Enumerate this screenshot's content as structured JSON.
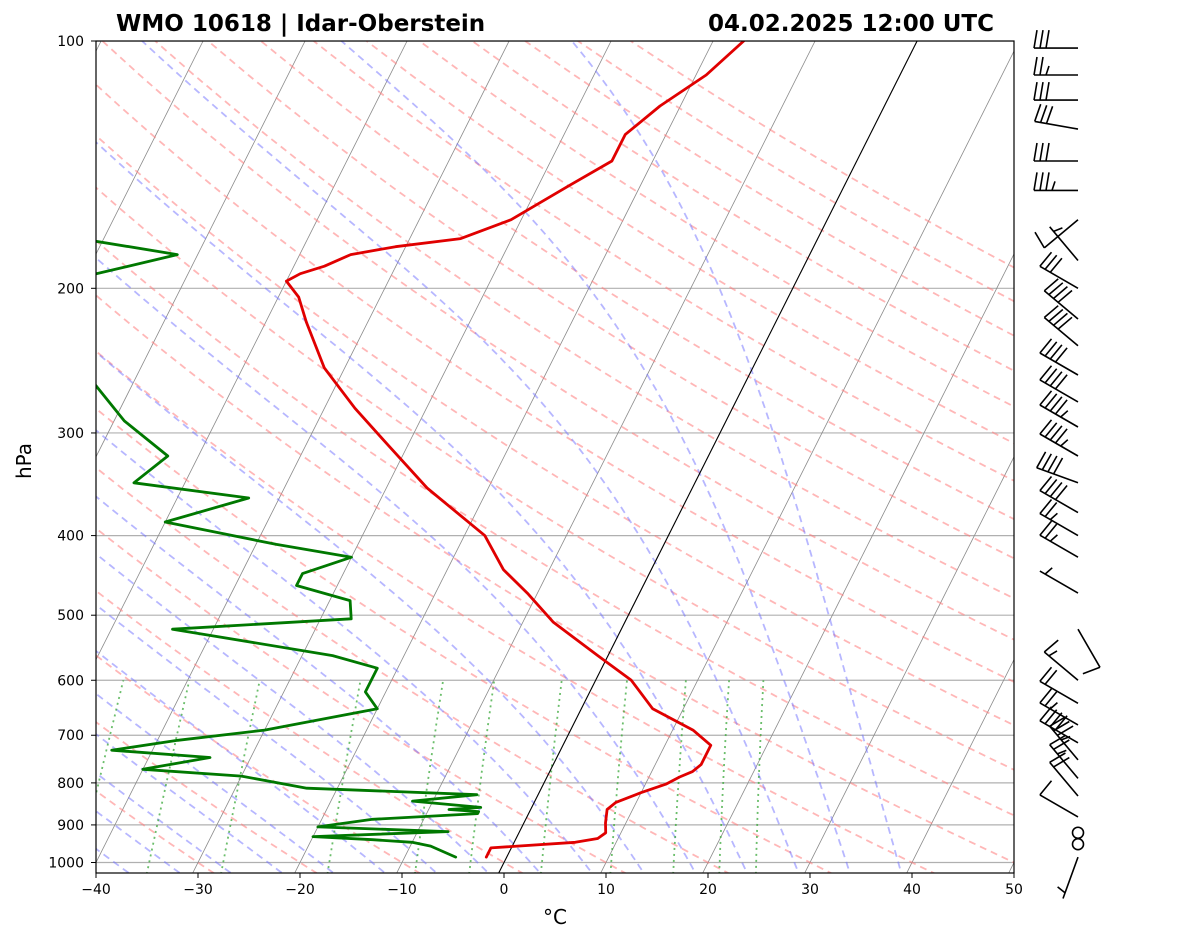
{
  "chart_data": {
    "type": "line",
    "title_left": "WMO 10618 | Idar-Oberstein",
    "title_right": "04.02.2025 12:00 UTC",
    "xlabel": "°C",
    "ylabel": "hPa",
    "xlim": [
      -40,
      50
    ],
    "ylim": [
      1000,
      100
    ],
    "x_ticks": [
      -40,
      -30,
      -20,
      -10,
      0,
      10,
      20,
      30,
      40,
      50
    ],
    "x_tick_labels": [
      "−40",
      "−30",
      "−20",
      "−10",
      "0",
      "10",
      "20",
      "30",
      "40",
      "50"
    ],
    "y_ticks": [
      1000,
      900,
      800,
      700,
      600,
      500,
      400,
      300,
      200,
      100
    ],
    "y_tick_labels": [
      "1000",
      "900",
      "800",
      "700",
      "600",
      "500",
      "400",
      "300",
      "200",
      "100"
    ],
    "skew_deg_per_decade": 40.5,
    "isotherm_step_c": 10,
    "dry_adiabats_theta_c": [
      -30,
      -20,
      -10,
      0,
      10,
      20,
      30,
      40,
      50,
      60,
      70,
      80,
      90,
      100,
      110,
      120,
      130,
      140,
      150,
      160,
      170,
      180,
      190,
      200
    ],
    "moist_adiabats_start_c": [
      -35,
      -30,
      -25,
      -20,
      -15,
      -10,
      -5,
      0,
      5,
      10,
      15,
      20,
      25,
      30,
      35,
      40
    ],
    "mixing_ratios_gkg": [
      0.1,
      0.2,
      0.4,
      1,
      2,
      3,
      5,
      8,
      12,
      16,
      20
    ],
    "zero_isotherm_c": 0,
    "series": [
      {
        "name": "Temperature",
        "color": "#e00000",
        "points": [
          [
            985,
            -2
          ],
          [
            960,
            -2
          ],
          [
            945,
            6
          ],
          [
            935,
            8
          ],
          [
            920,
            8.5
          ],
          [
            895,
            8
          ],
          [
            862,
            7.5
          ],
          [
            845,
            8
          ],
          [
            822,
            10
          ],
          [
            803,
            12
          ],
          [
            787,
            13
          ],
          [
            775,
            14
          ],
          [
            760,
            14.5
          ],
          [
            737,
            14.5
          ],
          [
            720,
            14.5
          ],
          [
            690,
            12
          ],
          [
            650,
            7
          ],
          [
            600,
            3.5
          ],
          [
            560,
            -1
          ],
          [
            510,
            -7
          ],
          [
            470,
            -11
          ],
          [
            440,
            -14.5
          ],
          [
            400,
            -18
          ],
          [
            350,
            -26
          ],
          [
            310,
            -32
          ],
          [
            280,
            -37
          ],
          [
            250,
            -42
          ],
          [
            220,
            -46
          ],
          [
            205,
            -48
          ],
          [
            196,
            -50
          ],
          [
            192,
            -49
          ],
          [
            188,
            -47
          ],
          [
            182,
            -45
          ],
          [
            178,
            -41
          ],
          [
            174,
            -35
          ],
          [
            165,
            -31
          ],
          [
            150,
            -27
          ],
          [
            140,
            -24
          ],
          [
            130,
            -24
          ],
          [
            120,
            -22
          ],
          [
            110,
            -19
          ],
          [
            100,
            -17
          ]
        ]
      },
      {
        "name": "Dew point",
        "color": "#007800",
        "points": [
          [
            985,
            -5
          ],
          [
            955,
            -8
          ],
          [
            945,
            -10
          ],
          [
            938,
            -14
          ],
          [
            930,
            -20
          ],
          [
            917,
            -7
          ],
          [
            905,
            -20
          ],
          [
            886,
            -15
          ],
          [
            872,
            -5
          ],
          [
            867,
            -5
          ],
          [
            862,
            -8
          ],
          [
            857,
            -5
          ],
          [
            842,
            -12
          ],
          [
            827,
            -6
          ],
          [
            812,
            -23
          ],
          [
            785,
            -30
          ],
          [
            770,
            -40
          ],
          [
            745,
            -34
          ],
          [
            730,
            -44
          ],
          [
            710,
            -38
          ],
          [
            690,
            -30
          ],
          [
            650,
            -20
          ],
          [
            620,
            -22
          ],
          [
            580,
            -22
          ],
          [
            560,
            -27
          ],
          [
            520,
            -44
          ],
          [
            505,
            -27
          ],
          [
            480,
            -28
          ],
          [
            460,
            -34
          ],
          [
            445,
            -34
          ],
          [
            425,
            -30
          ],
          [
            410,
            -38
          ],
          [
            385,
            -50
          ],
          [
            360,
            -43
          ],
          [
            345,
            -55
          ],
          [
            320,
            -53
          ],
          [
            290,
            -59
          ],
          [
            260,
            -64
          ],
          [
            230,
            -66
          ],
          [
            205,
            -71
          ],
          [
            195,
            -71
          ],
          [
            182,
            -62
          ],
          [
            175,
            -71
          ],
          [
            165,
            -81
          ],
          [
            150,
            -84
          ],
          [
            130,
            -88
          ],
          [
            115,
            -91
          ],
          [
            100,
            -95
          ]
        ]
      }
    ],
    "wind_barbs": [
      {
        "p": 985,
        "dir": 200,
        "kt": 7
      },
      {
        "p": 950,
        "dir": 0,
        "kt": 0
      },
      {
        "p": 920,
        "dir": 0,
        "kt": 0
      },
      {
        "p": 880,
        "dir": 300,
        "kt": 12
      },
      {
        "p": 830,
        "dir": 320,
        "kt": 20
      },
      {
        "p": 790,
        "dir": 320,
        "kt": 25
      },
      {
        "p": 750,
        "dir": 320,
        "kt": 35
      },
      {
        "p": 715,
        "dir": 300,
        "kt": 40
      },
      {
        "p": 680,
        "dir": 300,
        "kt": 25
      },
      {
        "p": 640,
        "dir": 300,
        "kt": 20
      },
      {
        "p": 600,
        "dir": 310,
        "kt": 15
      },
      {
        "p": 520,
        "dir": 150,
        "kt": 10
      },
      {
        "p": 470,
        "dir": 300,
        "kt": 5
      },
      {
        "p": 425,
        "dir": 300,
        "kt": 25
      },
      {
        "p": 400,
        "dir": 300,
        "kt": 25
      },
      {
        "p": 375,
        "dir": 300,
        "kt": 40
      },
      {
        "p": 345,
        "dir": 290,
        "kt": 40
      },
      {
        "p": 320,
        "dir": 300,
        "kt": 45
      },
      {
        "p": 295,
        "dir": 300,
        "kt": 45
      },
      {
        "p": 275,
        "dir": 300,
        "kt": 40
      },
      {
        "p": 255,
        "dir": 300,
        "kt": 40
      },
      {
        "p": 235,
        "dir": 310,
        "kt": 40
      },
      {
        "p": 218,
        "dir": 310,
        "kt": 40
      },
      {
        "p": 200,
        "dir": 300,
        "kt": 30
      },
      {
        "p": 185,
        "dir": 320,
        "kt": 5
      },
      {
        "p": 165,
        "dir": 230,
        "kt": 10
      },
      {
        "p": 152,
        "dir": 270,
        "kt": 35
      },
      {
        "p": 140,
        "dir": 270,
        "kt": 30
      },
      {
        "p": 128,
        "dir": 280,
        "kt": 30
      },
      {
        "p": 118,
        "dir": 270,
        "kt": 30
      },
      {
        "p": 110,
        "dir": 270,
        "kt": 25
      },
      {
        "p": 102,
        "dir": 270,
        "kt": 30
      }
    ]
  }
}
